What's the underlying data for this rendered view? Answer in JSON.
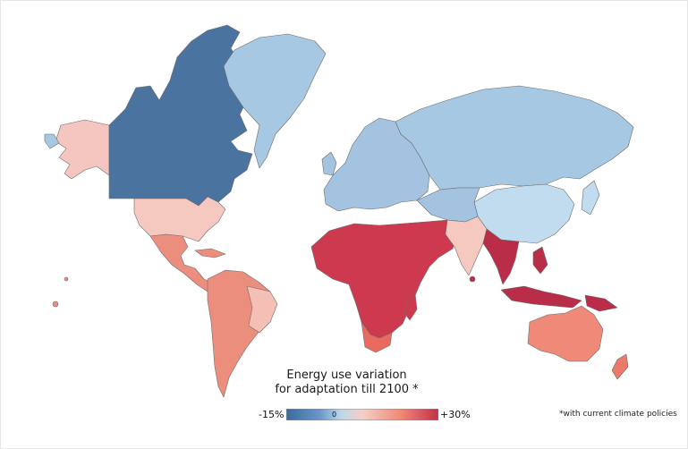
{
  "title_line1": "Energy use variation",
  "title_line2": "for adaptation till 2100 *",
  "legend": {
    "min_label": "-15%",
    "zero_label": "0",
    "max_label": "+30%",
    "colors": [
      "#3c6a9c",
      "#6a97c8",
      "#bcd6ea",
      "#f6cfc8",
      "#ef8a78",
      "#c2304a"
    ]
  },
  "footnote": "*with current climate policies",
  "region_colors": {
    "canada": "#4a73a0",
    "greenland": "#a6c8e2",
    "alaska": "#f4c6bf",
    "usa": "#f5c8c0",
    "mexico_central_america": "#ec8e7d",
    "south_america": "#ec8e7d",
    "brazil_east": "#f4bfb5",
    "europe": "#a3c3e0",
    "russia": "#a6c8e2",
    "china": "#c2dcef",
    "india": "#f6c9c0",
    "mena_africa": "#cd3a4f",
    "south_africa": "#e96a5e",
    "southeast_asia": "#b92d48",
    "australia": "#ef8a78",
    "new_zealand": "#ec7a68"
  }
}
